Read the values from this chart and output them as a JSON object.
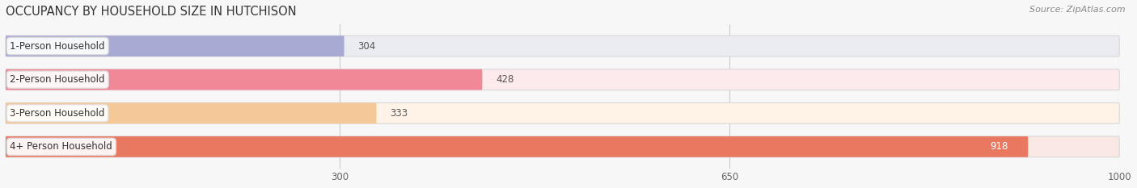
{
  "title": "OCCUPANCY BY HOUSEHOLD SIZE IN HUTCHISON",
  "source": "Source: ZipAtlas.com",
  "categories": [
    "1-Person Household",
    "2-Person Household",
    "3-Person Household",
    "4+ Person Household"
  ],
  "values": [
    304,
    428,
    333,
    918
  ],
  "bar_colors": [
    "#a8aad4",
    "#f08898",
    "#f5c898",
    "#e87860"
  ],
  "bar_bg_colors": [
    "#ebebf2",
    "#fdeaec",
    "#fef3e6",
    "#fae8e4"
  ],
  "xlim_max": 1000,
  "xticks": [
    300,
    650,
    1000
  ],
  "bar_height": 0.62,
  "figsize": [
    14.06,
    2.33
  ],
  "dpi": 100,
  "title_fontsize": 10.5,
  "label_fontsize": 8.5,
  "value_fontsize": 8.5,
  "source_fontsize": 8,
  "bg_color": "#f7f7f7",
  "label_pill_color": "#ffffff",
  "track_edge_color": "#d8d8d8",
  "value_color_inside": "#ffffff",
  "value_color_outside": "#555555"
}
